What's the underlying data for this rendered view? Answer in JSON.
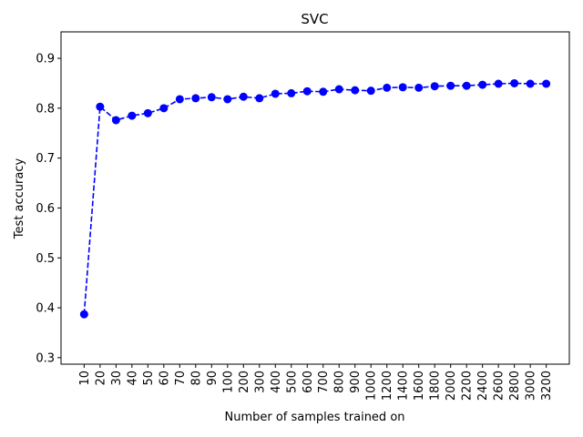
{
  "chart_data": {
    "type": "line",
    "title": "SVC",
    "xlabel": "Number of samples trained on",
    "ylabel": "Test accuracy",
    "categories": [
      "10",
      "20",
      "30",
      "40",
      "50",
      "60",
      "70",
      "80",
      "90",
      "100",
      "200",
      "300",
      "400",
      "500",
      "600",
      "700",
      "800",
      "900",
      "1000",
      "1200",
      "1400",
      "1600",
      "1800",
      "2000",
      "2200",
      "2400",
      "2600",
      "2800",
      "3000",
      "3200"
    ],
    "series": [
      {
        "values": [
          0.387,
          0.803,
          0.776,
          0.785,
          0.79,
          0.8,
          0.818,
          0.82,
          0.822,
          0.818,
          0.823,
          0.82,
          0.829,
          0.83,
          0.834,
          0.833,
          0.838,
          0.836,
          0.835,
          0.841,
          0.842,
          0.841,
          0.844,
          0.845,
          0.845,
          0.847,
          0.849,
          0.85,
          0.849,
          0.849
        ],
        "color": "#0000ff",
        "line_style": "dashed",
        "marker": "circle"
      }
    ],
    "ylim": [
      0.287,
      0.953
    ],
    "yticks": [
      0.3,
      0.4,
      0.5,
      0.6,
      0.7,
      0.8,
      0.9
    ],
    "ytick_labels": [
      "0.3",
      "0.4",
      "0.5",
      "0.6",
      "0.7",
      "0.8",
      "0.9"
    ],
    "grid": false,
    "legend": "none"
  }
}
